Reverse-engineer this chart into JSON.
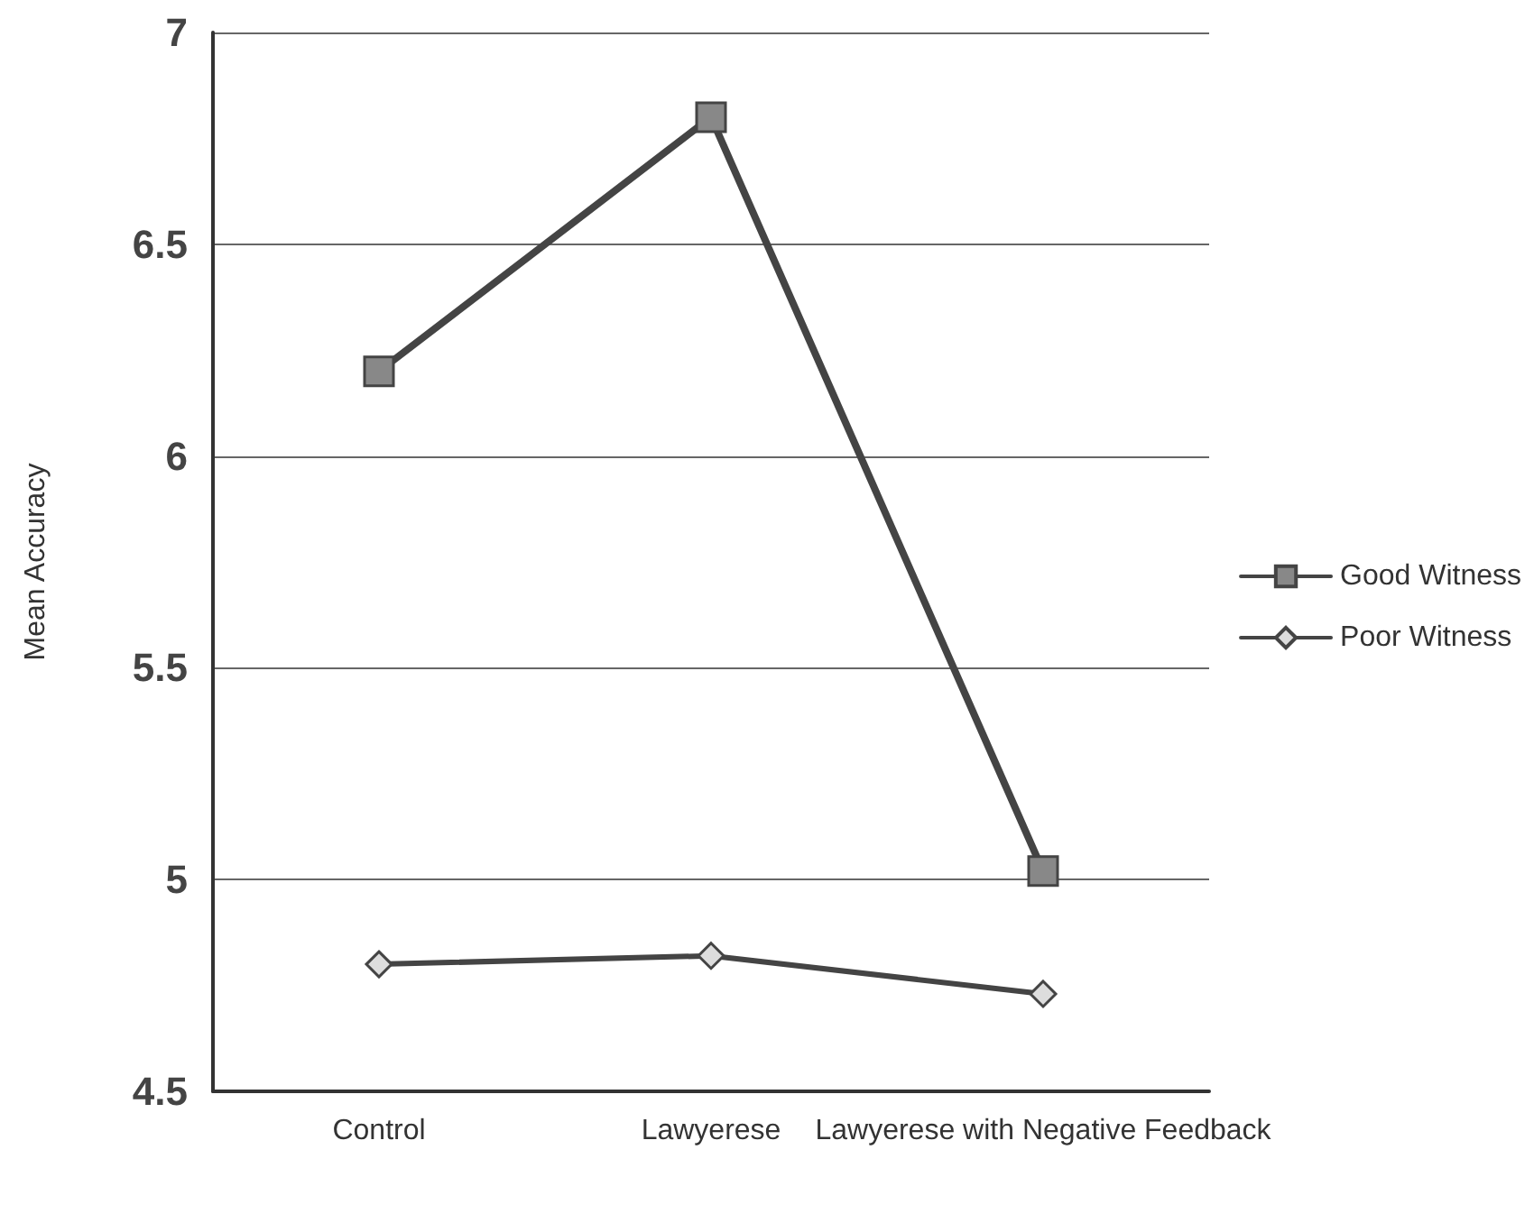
{
  "chart_data": {
    "type": "line",
    "ylabel": "Mean Accuracy",
    "categories": [
      "Control",
      "Lawyerese",
      "Lawyerese with Negative Feedback"
    ],
    "series": [
      {
        "name": "Good Witness",
        "color": "#444444",
        "marker": "square",
        "values": [
          6.2,
          6.8,
          5.02
        ]
      },
      {
        "name": "Poor Witness",
        "color": "#444444",
        "marker": "diamond",
        "values": [
          4.8,
          4.82,
          4.73
        ]
      }
    ],
    "ylim": [
      4.5,
      7
    ],
    "yticks": [
      4.5,
      5,
      5.5,
      6,
      6.5,
      7
    ],
    "grid": "y",
    "legend": "right",
    "line_style": "solid"
  }
}
